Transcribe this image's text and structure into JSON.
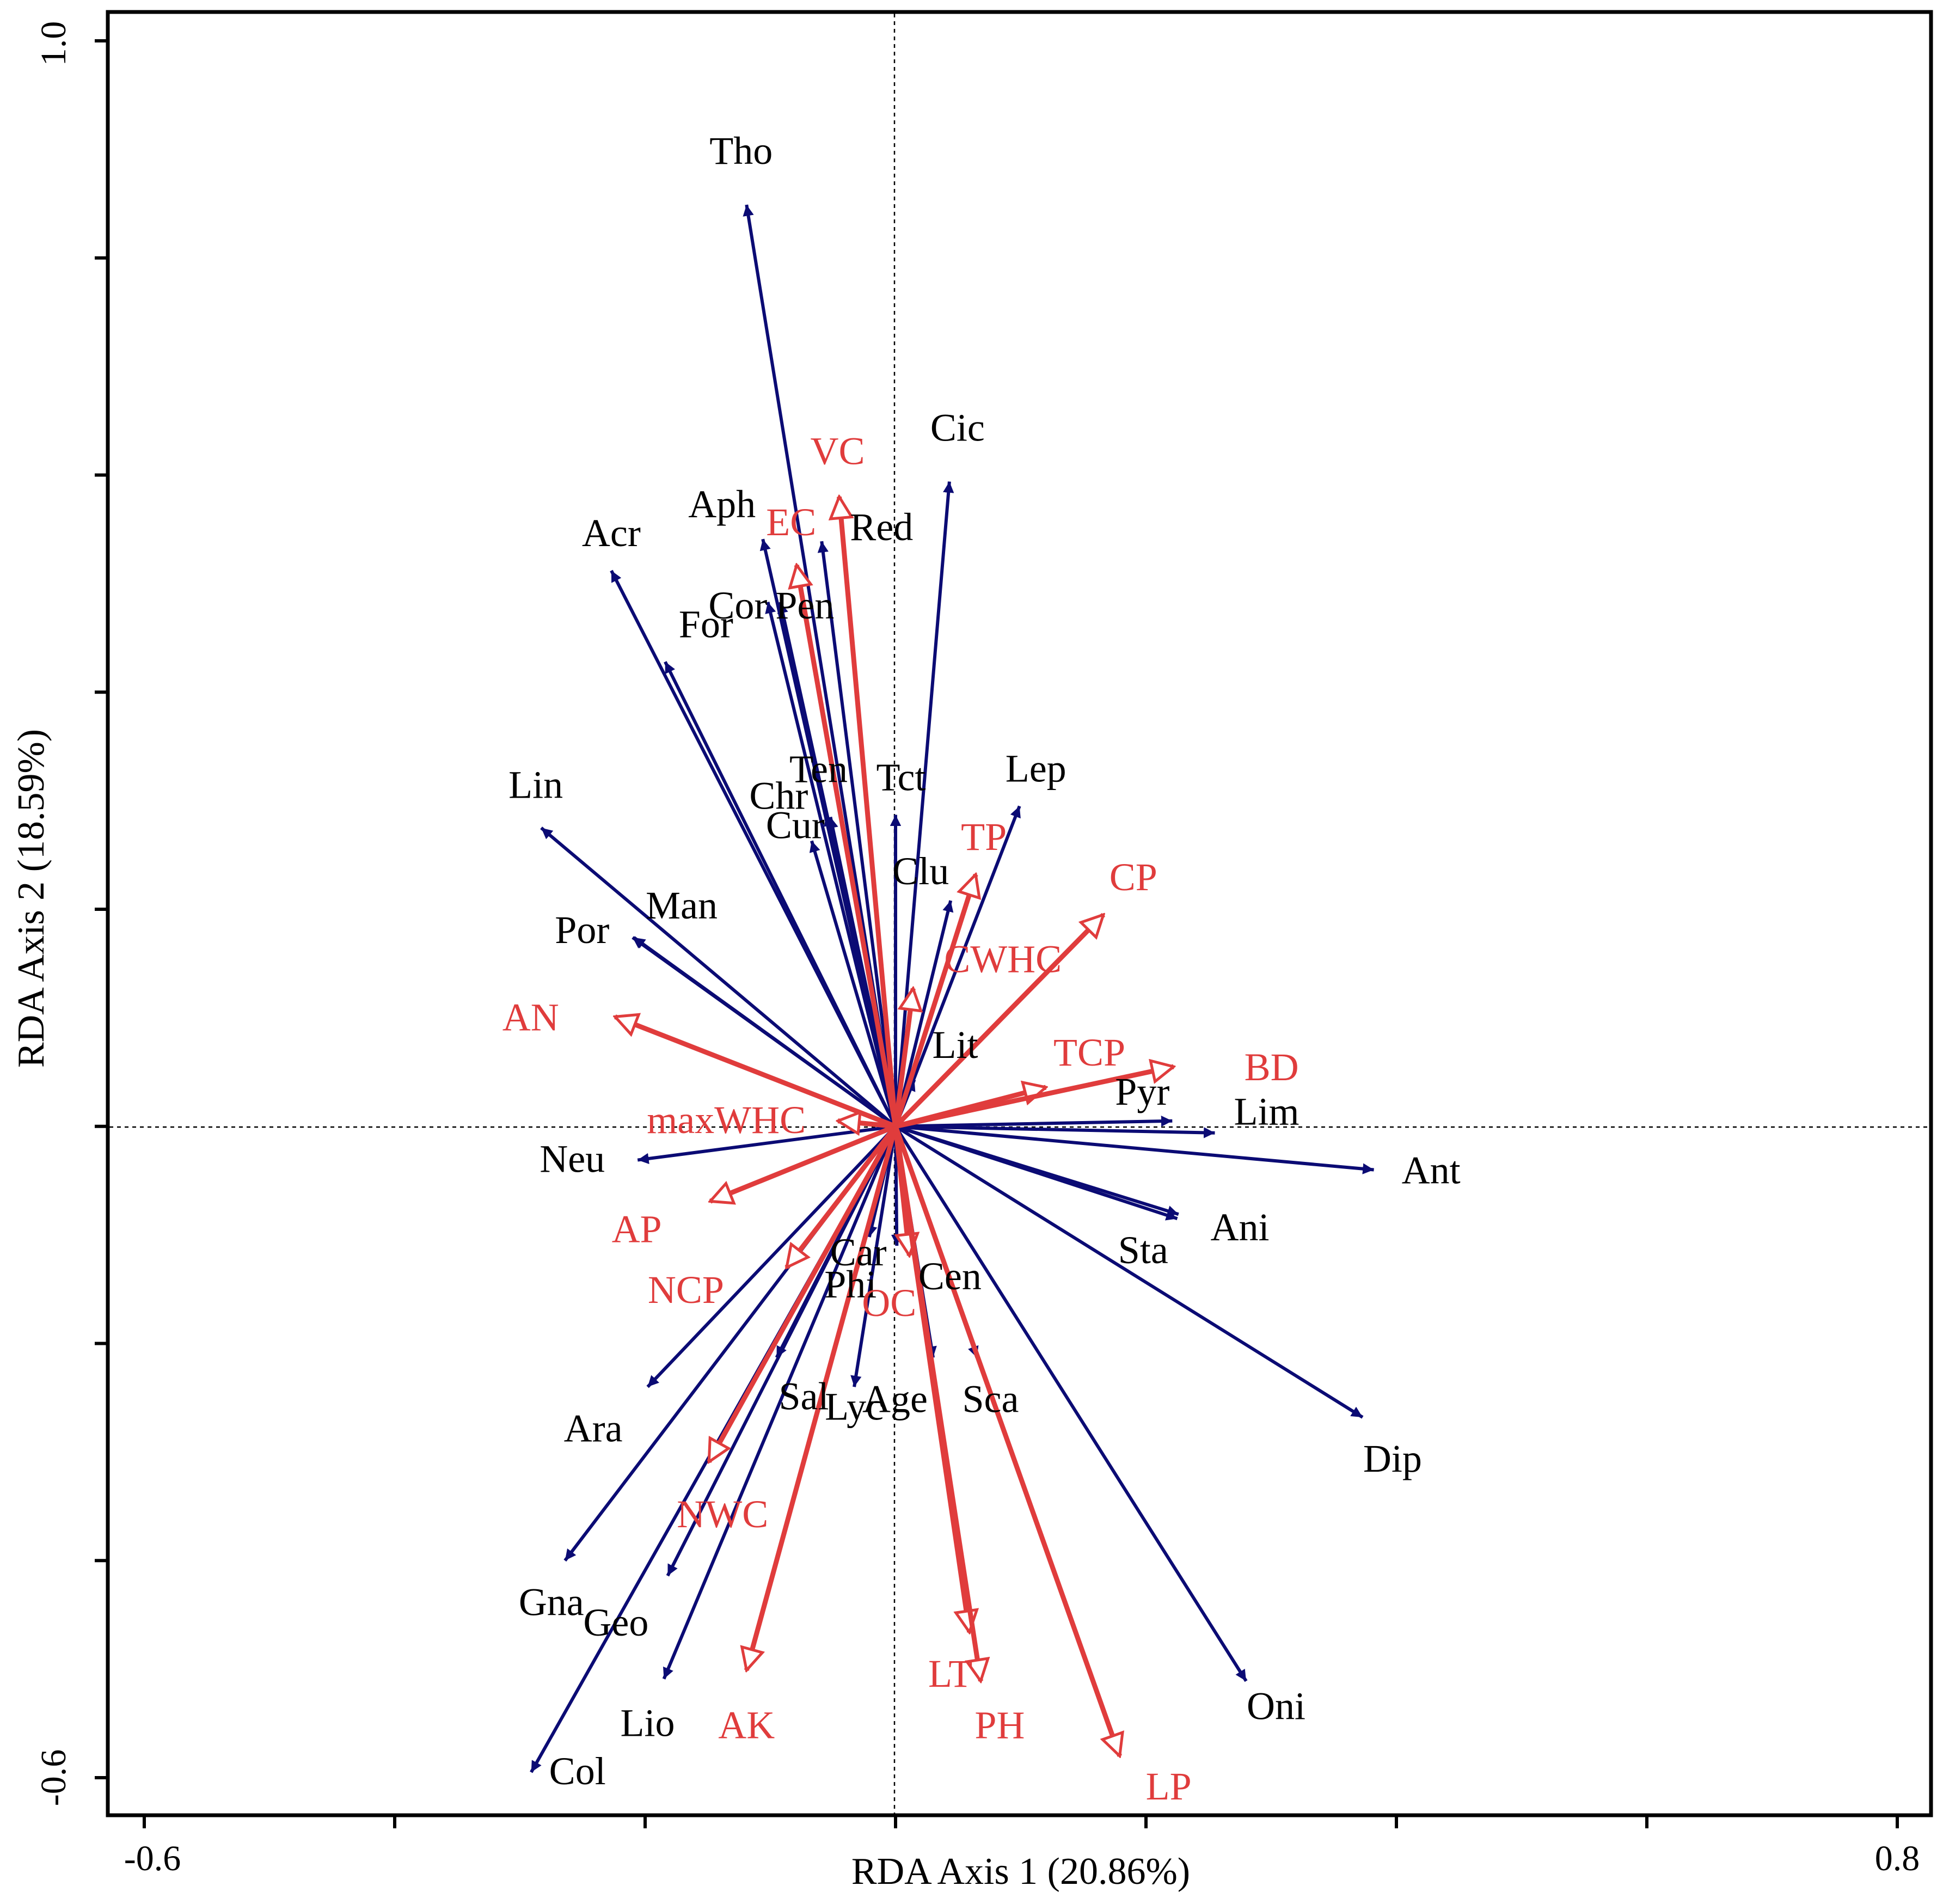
{
  "chart_data": {
    "type": "scatter",
    "subtype": "rda-biplot",
    "xlabel": "RDA Axis 1 (20.86%)",
    "ylabel": "RDA Axis 2 (18.59%)",
    "xlim": [
      -0.6,
      0.8
    ],
    "ylim": [
      -0.6,
      1.0
    ],
    "x_tick_labels": [
      "-0.6",
      "0.8"
    ],
    "y_tick_labels": [
      "-0.6",
      "1.0"
    ],
    "colors": {
      "species": "#0b0b74",
      "environment": "#e03c3c",
      "axis": "#000000"
    },
    "species_arrows": [
      {
        "name": "Tho",
        "x": -0.119,
        "y": 0.849
      },
      {
        "name": "Cic",
        "x": 0.043,
        "y": 0.594
      },
      {
        "name": "Aph",
        "x": -0.106,
        "y": 0.541
      },
      {
        "name": "Red",
        "x": -0.059,
        "y": 0.539
      },
      {
        "name": "Acr",
        "x": -0.227,
        "y": 0.512
      },
      {
        "name": "Cor",
        "x": -0.102,
        "y": 0.483
      },
      {
        "name": "Pen",
        "x": -0.092,
        "y": 0.483
      },
      {
        "name": "For",
        "x": -0.184,
        "y": 0.428
      },
      {
        "name": "Ten",
        "x": -0.055,
        "y": 0.287
      },
      {
        "name": "Chr",
        "x": -0.052,
        "y": 0.285
      },
      {
        "name": "Cur",
        "x": -0.067,
        "y": 0.263
      },
      {
        "name": "Tct",
        "x": 0.0,
        "y": 0.287
      },
      {
        "name": "Lep",
        "x": 0.099,
        "y": 0.295
      },
      {
        "name": "Lin",
        "x": -0.283,
        "y": 0.275
      },
      {
        "name": "Clu",
        "x": 0.044,
        "y": 0.208
      },
      {
        "name": "Man",
        "x": -0.21,
        "y": 0.174
      },
      {
        "name": "Por",
        "x": -0.209,
        "y": 0.174
      },
      {
        "name": "Lit",
        "x": 0.015,
        "y": 0.043
      },
      {
        "name": "Pyr",
        "x": 0.221,
        "y": 0.005
      },
      {
        "name": "Lim",
        "x": 0.255,
        "y": -0.006
      },
      {
        "name": "Ant",
        "x": 0.382,
        "y": -0.04
      },
      {
        "name": "Neu",
        "x": -0.206,
        "y": -0.031
      },
      {
        "name": "Ani",
        "x": 0.225,
        "y": -0.085
      },
      {
        "name": "Sta",
        "x": 0.226,
        "y": -0.081
      },
      {
        "name": "Car",
        "x": -0.021,
        "y": -0.102
      },
      {
        "name": "Phi",
        "x": 0.001,
        "y": -0.11
      },
      {
        "name": "Cen",
        "x": 0.013,
        "y": -0.11
      },
      {
        "name": "Sal",
        "x": -0.095,
        "y": -0.213
      },
      {
        "name": "Age",
        "x": 0.03,
        "y": -0.213
      },
      {
        "name": "Sca",
        "x": 0.065,
        "y": -0.213
      },
      {
        "name": "Lyc",
        "x": -0.033,
        "y": -0.24
      },
      {
        "name": "Ara",
        "x": -0.198,
        "y": -0.24
      },
      {
        "name": "Dip",
        "x": 0.373,
        "y": -0.268
      },
      {
        "name": "Gna",
        "x": -0.264,
        "y": -0.4
      },
      {
        "name": "Geo",
        "x": -0.182,
        "y": -0.414
      },
      {
        "name": "Lio",
        "x": -0.185,
        "y": -0.509
      },
      {
        "name": "Oni",
        "x": 0.28,
        "y": -0.511
      },
      {
        "name": "Col",
        "x": -0.291,
        "y": -0.595
      }
    ],
    "environment_arrows": [
      {
        "name": "VC",
        "x": -0.045,
        "y": 0.58
      },
      {
        "name": "EC",
        "x": -0.079,
        "y": 0.517
      },
      {
        "name": "TP",
        "x": 0.064,
        "y": 0.232
      },
      {
        "name": "CP",
        "x": 0.166,
        "y": 0.195
      },
      {
        "name": "CWHC",
        "x": 0.014,
        "y": 0.127
      },
      {
        "name": "AN",
        "x": -0.224,
        "y": 0.101
      },
      {
        "name": "TCP",
        "x": 0.12,
        "y": 0.036
      },
      {
        "name": "BD",
        "x": 0.222,
        "y": 0.055
      },
      {
        "name": "maxWHC",
        "x": -0.046,
        "y": 0.005
      },
      {
        "name": "AP",
        "x": -0.148,
        "y": -0.069
      },
      {
        "name": "NCP",
        "x": -0.087,
        "y": -0.13
      },
      {
        "name": "OC",
        "x": 0.011,
        "y": -0.119
      },
      {
        "name": "NWC",
        "x": -0.149,
        "y": -0.309
      },
      {
        "name": "AK",
        "x": -0.119,
        "y": -0.501
      },
      {
        "name": "LT",
        "x": 0.059,
        "y": -0.466
      },
      {
        "name": "PH",
        "x": 0.068,
        "y": -0.511
      },
      {
        "name": "LP",
        "x": 0.179,
        "y": -0.58
      }
    ]
  }
}
